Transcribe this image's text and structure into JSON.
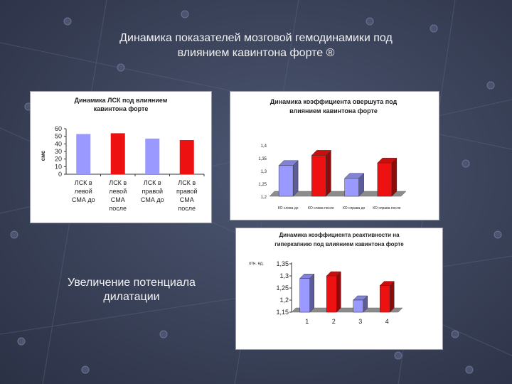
{
  "slide": {
    "title_line1": "Динамика показателей мозговой гемодинамики под",
    "title_line2": "влиянием кавинтона форте ®",
    "caption_line1": "Увеличение потенциала",
    "caption_line2": "дилатации"
  },
  "colors": {
    "background": "#3a4259",
    "bar_blue": "#9999ff",
    "bar_red": "#ee1111",
    "floor": "#8c8c8c"
  },
  "chart_data": [
    {
      "type": "bar",
      "title": [
        "Динамика ЛСК под влиянием",
        "кавинтона форте"
      ],
      "ylabel": "смс",
      "ylim": [
        0,
        60
      ],
      "yticks": [
        0,
        10,
        20,
        30,
        40,
        50,
        60
      ],
      "categories": [
        [
          "ЛСК в",
          "левой",
          "СМА до"
        ],
        [
          "ЛСК в",
          "левой",
          "СМА",
          "после"
        ],
        [
          "ЛСК в",
          "правой",
          "СМА до"
        ],
        [
          "ЛСК в",
          "правой",
          "СМА",
          "после"
        ]
      ],
      "values": [
        53,
        54,
        47,
        45
      ],
      "bar_colors": [
        "#9999ff",
        "#ee1111",
        "#9999ff",
        "#ee1111"
      ],
      "grid": false,
      "style": "2d"
    },
    {
      "type": "bar",
      "title": [
        "Динамика коэффициента овершута под",
        "влиянием кавинтона форте"
      ],
      "ylim": [
        1.2,
        1.4
      ],
      "yticks": [
        "1,2",
        "1,25",
        "1,3",
        "1,35",
        "1,4"
      ],
      "ytick_values": [
        1.2,
        1.25,
        1.3,
        1.35,
        1.4
      ],
      "categories": [
        "КО слева до",
        "КО слева после",
        "КО справа до",
        "КО справа после"
      ],
      "values": [
        1.32,
        1.36,
        1.27,
        1.33
      ],
      "bar_colors": [
        "#9999ff",
        "#ee1111",
        "#9999ff",
        "#ee1111"
      ],
      "grid": false,
      "style": "3d"
    },
    {
      "type": "bar",
      "title": [
        "Динамика коэффициента реактивности на",
        "гиперкапнию под влиянием кавинтона форте"
      ],
      "ylabel": "отн. ед.",
      "ylim": [
        1.15,
        1.35
      ],
      "yticks": [
        "1,15",
        "1,2",
        "1,25",
        "1,3",
        "1,35"
      ],
      "ytick_values": [
        1.15,
        1.2,
        1.25,
        1.3,
        1.35
      ],
      "categories": [
        "1",
        "2",
        "3",
        "4"
      ],
      "values": [
        1.29,
        1.3,
        1.2,
        1.26
      ],
      "bar_colors": [
        "#9999ff",
        "#ee1111",
        "#9999ff",
        "#ee1111"
      ],
      "grid": false,
      "style": "3d"
    }
  ]
}
